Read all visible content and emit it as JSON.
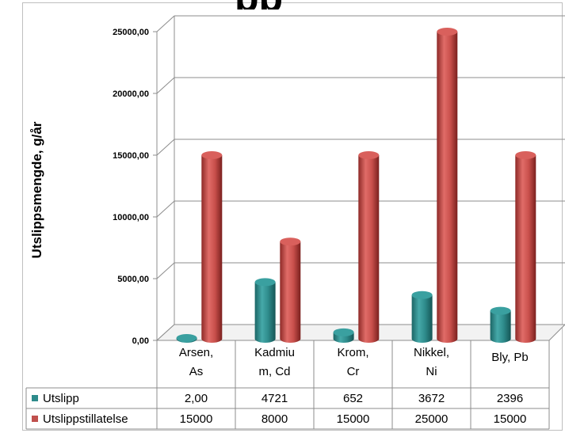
{
  "chart_data": {
    "type": "bar",
    "title": "",
    "ylabel": "Utslippsmengde, g/år",
    "ylim": [
      0,
      25000
    ],
    "yticks": [
      "0,00",
      "5000,00",
      "10000,00",
      "15000,00",
      "20000,00",
      "25000,00"
    ],
    "categories": [
      [
        "Arsen,",
        "As"
      ],
      [
        "Kadmiu",
        "m, Cd"
      ],
      [
        "Krom,",
        "Cr"
      ],
      [
        "Nikkel,",
        "Ni"
      ],
      [
        "Bly, Pb"
      ]
    ],
    "series": [
      {
        "name": "Utslipp",
        "color": "#2e8b8b",
        "values": [
          2.0,
          4721,
          652,
          3672,
          2396
        ],
        "labels": [
          "2,00",
          "4721",
          "652",
          "3672",
          "2396"
        ]
      },
      {
        "name": "Utslippstillatelse",
        "color": "#c0504d",
        "values": [
          15000,
          8000,
          15000,
          25000,
          15000
        ],
        "labels": [
          "15000",
          "8000",
          "15000",
          "25000",
          "15000"
        ]
      }
    ],
    "grid": true,
    "legend": "data-table"
  }
}
